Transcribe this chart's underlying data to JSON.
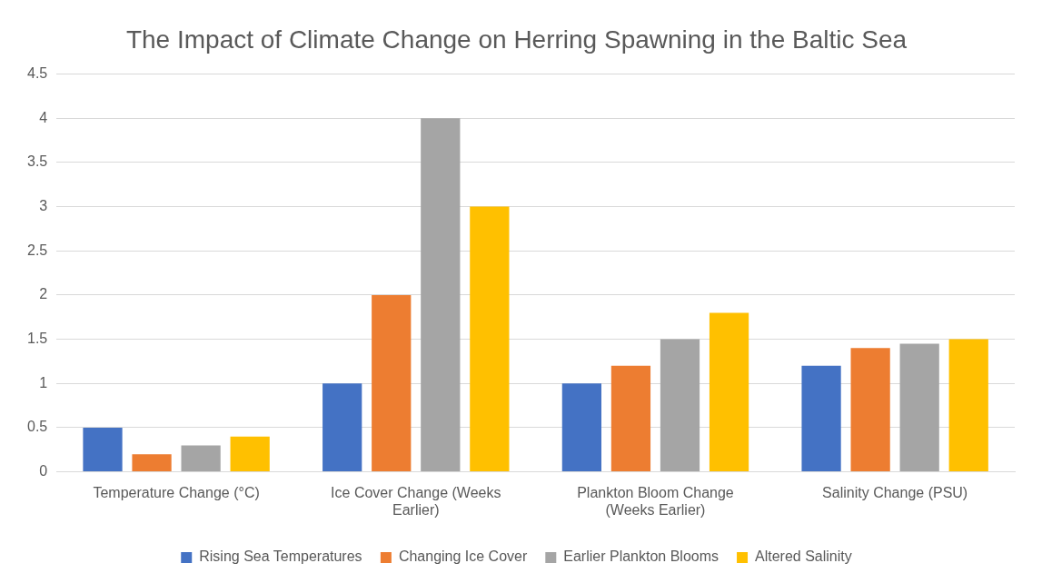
{
  "chart_data": {
    "type": "bar",
    "title": "The Impact of Climate Change on Herring Spawning in the Baltic Sea",
    "categories": [
      "Temperature Change (°C)",
      "Ice Cover Change (Weeks Earlier)",
      "Plankton Bloom Change (Weeks Earlier)",
      "Salinity Change (PSU)"
    ],
    "series": [
      {
        "name": "Rising Sea Temperatures",
        "color": "#4472c4",
        "values": [
          0.5,
          1,
          1,
          1.2
        ]
      },
      {
        "name": "Changing Ice Cover",
        "color": "#ed7d31",
        "values": [
          0.2,
          2,
          1.2,
          1.4
        ]
      },
      {
        "name": "Earlier Plankton Blooms",
        "color": "#a5a5a5",
        "values": [
          0.3,
          4,
          1.5,
          1.45
        ]
      },
      {
        "name": "Altered Salinity",
        "color": "#ffc000",
        "values": [
          0.4,
          3,
          1.8,
          1.5
        ]
      }
    ],
    "ylim": [
      0,
      4.5
    ],
    "yticks": [
      0,
      0.5,
      1,
      1.5,
      2,
      2.5,
      3,
      3.5,
      4,
      4.5
    ],
    "grid": "y",
    "legend": "bottom"
  }
}
